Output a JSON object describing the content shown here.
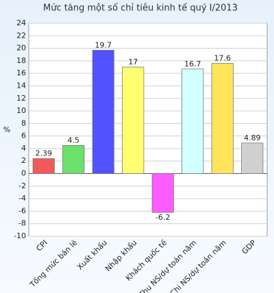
{
  "chart_data": {
    "type": "bar",
    "title": "Mức tăng một số chỉ tiêu kinh tế quý I/2013",
    "y_label": "%",
    "categories": [
      "CPI",
      "Tổng mức bán lẻ",
      "Xuất khẩu",
      "Nhập khẩu",
      "Khách quốc tế",
      "Thu NS/dự toán năm",
      "Chi NS/dự toán năm",
      "GDP"
    ],
    "values": [
      2.39,
      4.5,
      19.7,
      17,
      -6.2,
      16.7,
      17.6,
      4.89
    ],
    "colors": [
      "#f25a5a",
      "#6ce06c",
      "#5252ff",
      "#ffff70",
      "#ff5cff",
      "#d2ffff",
      "#ffe45a",
      "#d0d0d0"
    ],
    "ylim": [
      -10,
      24
    ],
    "yticks": [
      -10,
      -8,
      -6,
      -4,
      -2,
      0,
      2,
      4,
      6,
      8,
      10,
      12,
      14,
      16,
      18,
      20,
      22,
      24
    ],
    "grid": true
  }
}
